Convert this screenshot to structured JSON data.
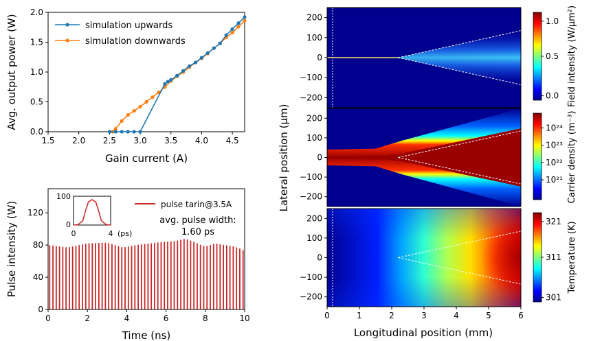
{
  "chart_data": [
    {
      "type": "line",
      "panel": "gain-sweep",
      "xlabel": "Gain current (A)",
      "ylabel": "Avg. output power (W)",
      "xlim": [
        1.5,
        4.7
      ],
      "ylim": [
        0,
        2.0
      ],
      "xticks": [
        "1.5",
        "2.0",
        "2.5",
        "3.0",
        "3.5",
        "4.0",
        "4.5"
      ],
      "yticks": [
        "0.0",
        "0.5",
        "1.0",
        "1.5",
        "2.0"
      ],
      "legend_position": "top-left",
      "grid": false,
      "series": [
        {
          "name": "simulation upwards",
          "color": "#1f77b4",
          "x": [
            2.5,
            2.6,
            2.7,
            2.8,
            2.9,
            3.0,
            3.4,
            3.45,
            3.5,
            3.6,
            3.7,
            3.8,
            3.9,
            4.0,
            4.1,
            4.2,
            4.3,
            4.4,
            4.5,
            4.6,
            4.7
          ],
          "y": [
            0.0,
            0.0,
            0.0,
            0.0,
            0.0,
            0.0,
            0.8,
            0.84,
            0.87,
            0.94,
            1.02,
            1.1,
            1.16,
            1.24,
            1.32,
            1.4,
            1.48,
            1.62,
            1.72,
            1.82,
            1.92
          ]
        },
        {
          "name": "simulation downwards",
          "color": "#ff7f0e",
          "x": [
            2.55,
            2.6,
            2.7,
            2.8,
            2.9,
            3.0,
            3.1,
            3.2,
            3.3,
            3.4,
            3.5,
            3.6,
            3.7,
            3.8,
            3.9,
            4.0,
            4.1,
            4.2,
            4.3,
            4.4,
            4.5,
            4.6,
            4.7
          ],
          "y": [
            0.0,
            0.05,
            0.18,
            0.28,
            0.35,
            0.42,
            0.5,
            0.58,
            0.66,
            0.75,
            0.85,
            0.93,
            1.0,
            1.08,
            1.16,
            1.23,
            1.31,
            1.4,
            1.48,
            1.58,
            1.66,
            1.76,
            1.86
          ]
        }
      ]
    },
    {
      "type": "bar",
      "panel": "pulse-train",
      "xlabel": "Time (ns)",
      "ylabel": "Pulse intensity (W)",
      "xlim": [
        0,
        10
      ],
      "ylim": [
        0,
        150
      ],
      "xticks": [
        "0",
        "2",
        "4",
        "6",
        "8",
        "10"
      ],
      "yticks": [
        "0",
        "40",
        "80",
        "120"
      ],
      "legend": "pulse tarin@3.5A",
      "color": "#c62828",
      "annotation_line1": "avg. pulse width:",
      "annotation_line2": "1.60 ps",
      "pulse_count": 60,
      "envelope": {
        "t": [
          0,
          1,
          2,
          3,
          3.8,
          4.5,
          5.5,
          6.5,
          7,
          7.5,
          8,
          8.5,
          9,
          9.5,
          10
        ],
        "peak": [
          80,
          77,
          82,
          83,
          77,
          80,
          83,
          85,
          88,
          83,
          78,
          82,
          80,
          78,
          73
        ]
      },
      "inset": {
        "type": "line",
        "xlim": [
          0,
          4
        ],
        "ylim": [
          0,
          100
        ],
        "xticks": [
          "0",
          "4"
        ],
        "yticks": [
          "0",
          "100"
        ],
        "x_unit": "(ps)",
        "t": [
          0,
          0.5,
          1,
          1.3,
          1.6,
          2,
          2.4,
          2.7,
          3,
          3.5,
          4
        ],
        "y": [
          0,
          2,
          15,
          50,
          80,
          88,
          80,
          50,
          15,
          2,
          0
        ]
      }
    },
    {
      "type": "heatmap",
      "panel": "field-intensity",
      "xlabel": "Longitudinal position (mm)",
      "ylabel": "Lateral position (μm)",
      "xlim": [
        0,
        6
      ],
      "ylim": [
        -250,
        250
      ],
      "xticks": [
        "0",
        "1",
        "2",
        "3",
        "4",
        "5",
        "6"
      ],
      "yticks": [
        "200",
        "100",
        "0",
        "−100",
        "−200"
      ],
      "colorbar_label": "Field intensity (W/μm²)",
      "colorbar_ticks": [
        "1.0",
        "0.5",
        "0.0"
      ],
      "colormap": "jet"
    },
    {
      "type": "heatmap",
      "panel": "carrier-density",
      "xlim": [
        0,
        6
      ],
      "ylim": [
        -250,
        250
      ],
      "yticks": [
        "200",
        "100",
        "0",
        "−100",
        "−200"
      ],
      "colorbar_label": "Carrier density (m⁻³)",
      "colorbar_ticks": [
        "10²⁴",
        "10²³",
        "10²²",
        "10²¹"
      ],
      "colormap": "jet"
    },
    {
      "type": "heatmap",
      "panel": "temperature",
      "xlim": [
        0,
        6
      ],
      "ylim": [
        -250,
        250
      ],
      "yticks": [
        "200",
        "100",
        "0",
        "−100",
        "−200"
      ],
      "colorbar_label": "Temperature (K)",
      "colorbar_ticks": [
        "321",
        "311",
        "301"
      ],
      "colormap": "jet"
    }
  ]
}
